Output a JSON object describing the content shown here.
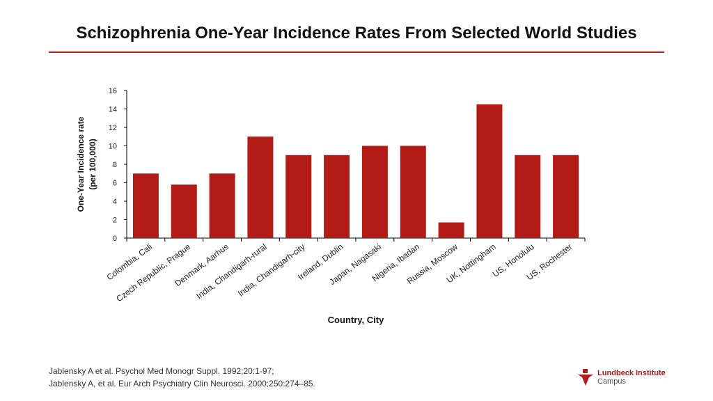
{
  "title": "Schizophrenia One-Year Incidence Rates From Selected World Studies",
  "chart_data": {
    "type": "bar",
    "title": "",
    "xlabel": "Country, City",
    "ylabel": [
      "One-Year Incidence rate",
      "(per 100,000)"
    ],
    "ylim": [
      0,
      16
    ],
    "yticks": [
      0,
      2,
      4,
      6,
      8,
      10,
      12,
      14,
      16
    ],
    "grid": false,
    "color": "#b31b16",
    "categories": [
      "Colombia, Cali",
      "Czech Republic, Prague",
      "Denmark, Aarhus",
      "India, Chandigarh-rural",
      "India, Chandigarh-city",
      "Ireland, Dublin",
      "Japan, Nagasaki",
      "Nigeria, Ibadan",
      "Russia, Moscow",
      "UK, Nottingham",
      "US, Honolulu",
      "US, Rochester"
    ],
    "values": [
      7,
      5.8,
      7,
      11,
      9,
      9,
      10,
      10,
      1.7,
      14.5,
      9,
      9
    ]
  },
  "references": [
    "Jablensky A et al. Psychol Med Monogr Suppl. 1992;20:1-97;",
    "Jablensky A, et al. Eur Arch Psychiatry Clin Neurosci. 2000;250:274–85."
  ],
  "logo": {
    "line1": "Lundbeck Institute",
    "line2": "Campus"
  }
}
